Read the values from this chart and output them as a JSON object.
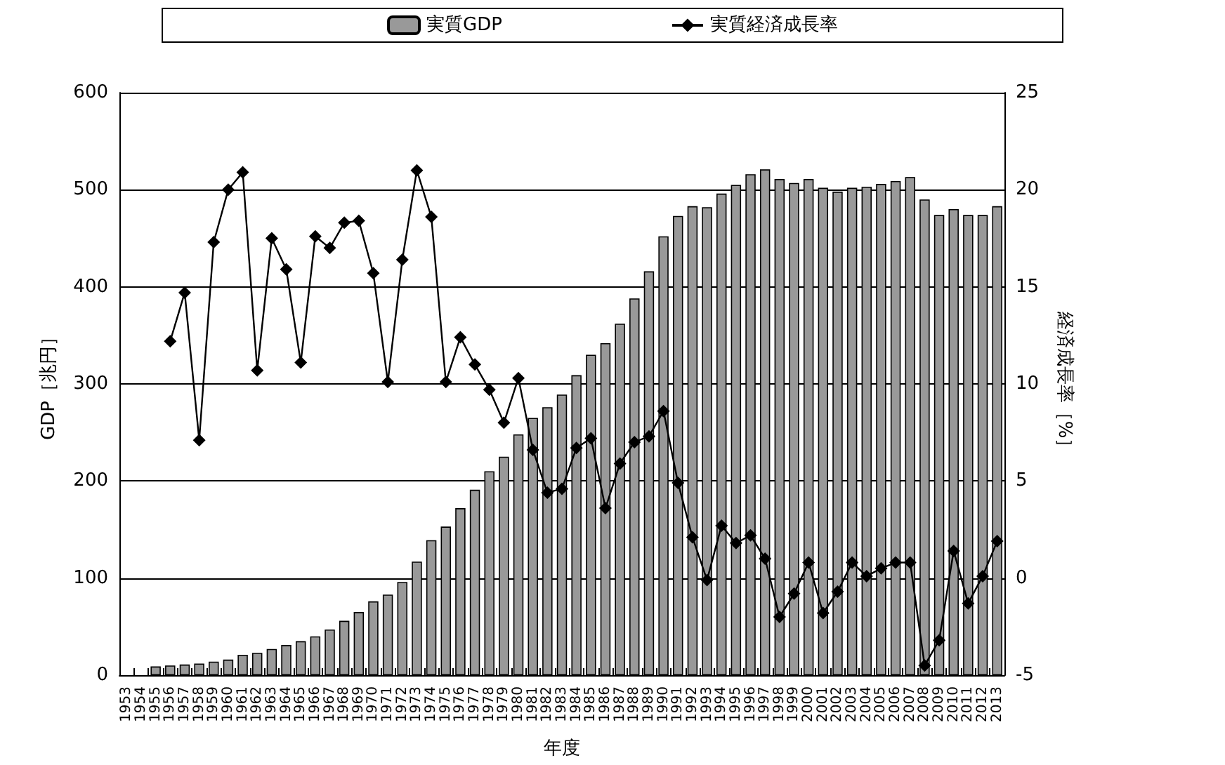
{
  "chart_data": {
    "type": "bar",
    "xlabel": "年度",
    "ylabel": "GDP［兆円］",
    "y2label": "経済成長率［%］",
    "categories": [
      "1953",
      "1954",
      "1955",
      "1956",
      "1957",
      "1958",
      "1959",
      "1960",
      "1961",
      "1962",
      "1963",
      "1964",
      "1965",
      "1966",
      "1967",
      "1968",
      "1969",
      "1970",
      "1971",
      "1972",
      "1973",
      "1974",
      "1975",
      "1976",
      "1977",
      "1978",
      "1979",
      "1980",
      "1981",
      "1982",
      "1983",
      "1984",
      "1985",
      "1986",
      "1987",
      "1988",
      "1989",
      "1990",
      "1991",
      "1992",
      "1993",
      "1994",
      "1995",
      "1996",
      "1997",
      "1998",
      "1999",
      "2000",
      "2001",
      "2002",
      "2003",
      "2004",
      "2005",
      "2006",
      "2007",
      "2008",
      "2009",
      "2010",
      "2011",
      "2012",
      "2013"
    ],
    "series": [
      {
        "name": "実質GDP",
        "color": "#999999",
        "values": [
          null,
          null,
          9,
          10,
          11,
          12,
          14,
          16,
          21,
          23,
          27,
          31,
          35,
          40,
          47,
          56,
          65,
          76,
          83,
          96,
          117,
          139,
          153,
          172,
          191,
          210,
          225,
          248,
          265,
          276,
          289,
          309,
          330,
          342,
          362,
          388,
          416,
          452,
          473,
          483,
          482,
          496,
          505,
          516,
          521,
          511,
          507,
          511,
          502,
          498,
          502,
          503,
          506,
          509,
          513,
          490,
          474,
          480,
          474,
          474,
          483
        ]
      },
      {
        "name": "実質経済成長率",
        "type": "line",
        "axis": "y2",
        "color": "#000000",
        "marker": "diamond",
        "values": [
          null,
          null,
          null,
          12.2,
          14.7,
          7.1,
          17.3,
          20.0,
          20.9,
          10.7,
          17.5,
          15.9,
          11.1,
          17.6,
          17.0,
          18.3,
          18.4,
          15.7,
          10.1,
          16.4,
          21.0,
          18.6,
          10.1,
          12.4,
          11.0,
          9.7,
          8.0,
          10.3,
          6.6,
          4.4,
          4.6,
          6.7,
          7.2,
          3.6,
          5.9,
          7.0,
          7.3,
          8.6,
          4.9,
          2.1,
          -0.1,
          2.7,
          1.8,
          2.2,
          1.0,
          -2.0,
          -0.8,
          0.8,
          -1.8,
          -0.7,
          0.8,
          0.1,
          0.5,
          0.8,
          0.8,
          -4.5,
          -3.2,
          1.4,
          -1.3,
          0.1,
          1.9
        ]
      }
    ],
    "ylim": [
      0,
      600
    ],
    "yticks": [
      0,
      100,
      200,
      300,
      400,
      500,
      600
    ],
    "y2lim": [
      -5,
      25
    ],
    "y2ticks": [
      -5,
      0,
      5,
      10,
      15,
      20,
      25
    ],
    "grid": "y",
    "legend": "top"
  }
}
